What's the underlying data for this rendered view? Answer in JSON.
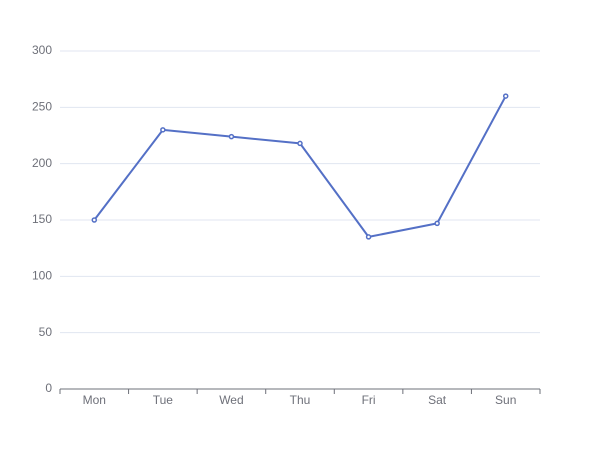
{
  "chart_data": {
    "type": "line",
    "categories": [
      "Mon",
      "Tue",
      "Wed",
      "Thu",
      "Fri",
      "Sat",
      "Sun"
    ],
    "values": [
      150,
      230,
      224,
      218,
      135,
      147,
      260
    ],
    "color": "#5470c6",
    "ylim": [
      0,
      300
    ],
    "yticks": [
      0,
      50,
      100,
      150,
      200,
      250,
      300
    ],
    "grid": true
  }
}
